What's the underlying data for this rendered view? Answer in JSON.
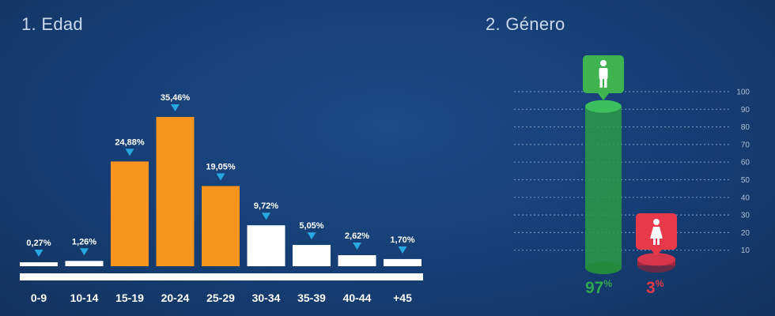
{
  "chart_data": [
    {
      "type": "bar",
      "title": "1. Edad",
      "categories": [
        "0-9",
        "10-14",
        "15-19",
        "20-24",
        "25-29",
        "30-34",
        "35-39",
        "40-44",
        "+45"
      ],
      "values": [
        0.27,
        1.26,
        24.88,
        35.46,
        19.05,
        9.72,
        5.05,
        2.62,
        1.7
      ],
      "value_labels": [
        "0,27%",
        "1,26%",
        "24,88%",
        "35,46%",
        "19,05%",
        "9,72%",
        "5,05%",
        "2,62%",
        "1,70%"
      ],
      "colors": [
        "#ffffff",
        "#ffffff",
        "#f7941d",
        "#f7941d",
        "#f7941d",
        "#ffffff",
        "#ffffff",
        "#ffffff",
        "#ffffff"
      ],
      "marker_color": "#29a8e0",
      "ylim": [
        0,
        40
      ],
      "grid": false
    },
    {
      "type": "bar",
      "title": "2. Género",
      "categories": [
        "male-icon",
        "female-icon"
      ],
      "values": [
        97,
        3
      ],
      "value_labels": [
        "97",
        "3"
      ],
      "unit_suffix": "%",
      "colors": [
        "#2fa84f",
        "#e8394a"
      ],
      "yticks": [
        10,
        20,
        30,
        40,
        50,
        60,
        70,
        80,
        90,
        100
      ],
      "ylim": [
        0,
        100
      ],
      "grid": true
    }
  ]
}
